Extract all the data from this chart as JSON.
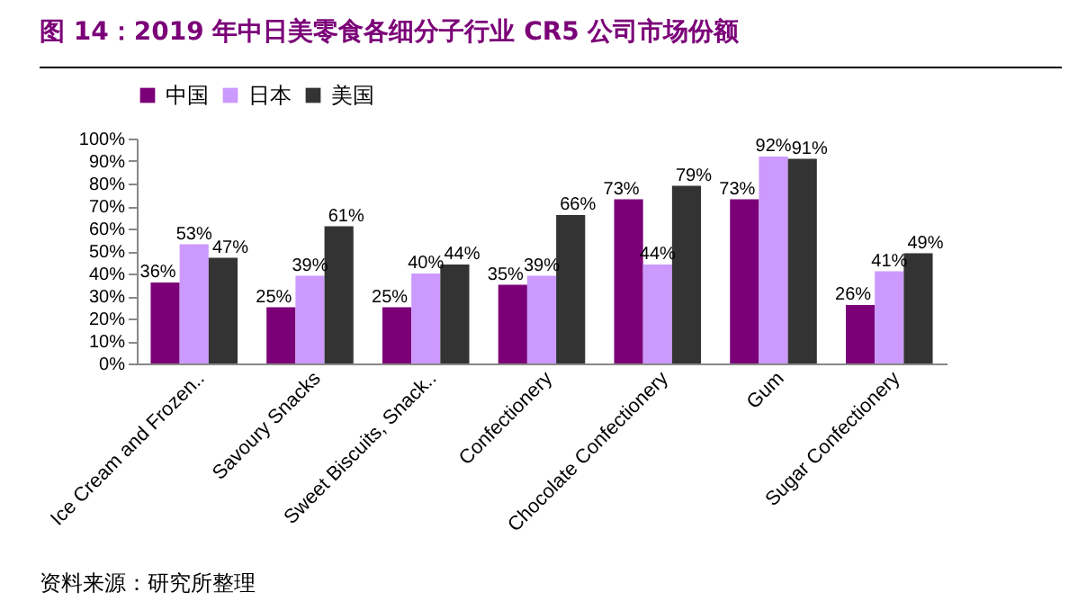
{
  "chart_data": {
    "type": "bar",
    "title": "图 14：2019 年中日美零食各细分子行业 CR5 公司市场份额",
    "categories": [
      "Ice Cream and Frozen..",
      "Savoury Snacks",
      "Sweet Biscuits, Snack..",
      "Confectionery",
      "Chocolate Confectionery",
      "Gum",
      "Sugar Confectionery"
    ],
    "series": [
      {
        "name": "中国",
        "color": "#7b0078",
        "values": [
          36,
          25,
          25,
          35,
          73,
          73,
          26
        ],
        "value_labels": [
          "36%",
          "25%",
          "25%",
          "35%",
          "73%",
          "73%",
          "26%"
        ]
      },
      {
        "name": "日本",
        "color": "#cc99ff",
        "values": [
          53,
          39,
          40,
          39,
          44,
          92,
          41
        ],
        "value_labels": [
          "53%",
          "39%",
          "40%",
          "39%",
          "44%",
          "92%",
          "41%"
        ]
      },
      {
        "name": "美国",
        "color": "#333333",
        "values": [
          47,
          61,
          44,
          66,
          79,
          91,
          49
        ],
        "value_labels": [
          "47%",
          "61%",
          "44%",
          "66%",
          "79%",
          "91%",
          "49%"
        ]
      }
    ],
    "ylim": [
      0,
      100
    ],
    "yticks": [
      {
        "value": 0,
        "label": "0%"
      },
      {
        "value": 10,
        "label": "10%"
      },
      {
        "value": 20,
        "label": "20%"
      },
      {
        "value": 30,
        "label": "30%"
      },
      {
        "value": 40,
        "label": "40%"
      },
      {
        "value": 50,
        "label": "50%"
      },
      {
        "value": 60,
        "label": "60%"
      },
      {
        "value": 70,
        "label": "70%"
      },
      {
        "value": 80,
        "label": "80%"
      },
      {
        "value": 90,
        "label": "90%"
      },
      {
        "value": 100,
        "label": "100%"
      }
    ],
    "legend": "top",
    "grid": false,
    "annotations": [
      "资料来源：研究所整理"
    ]
  }
}
